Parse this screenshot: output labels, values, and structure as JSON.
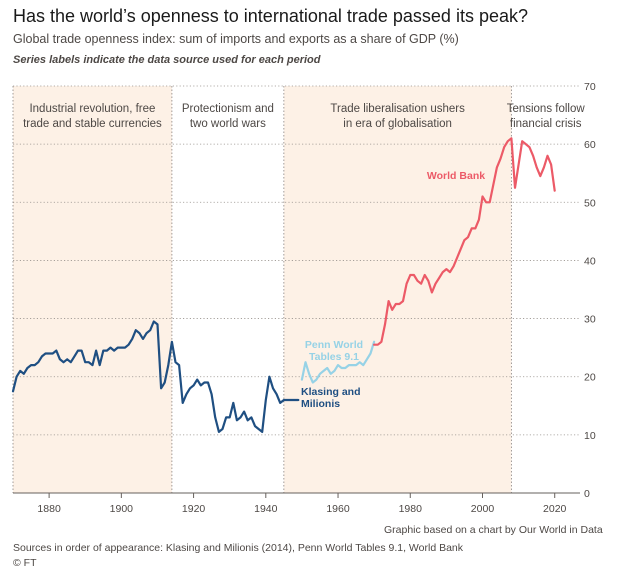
{
  "header": {
    "title": "Has the world’s openness to international trade passed its peak?",
    "subtitle": "Global trade openness index: sum of imports and exports as a share of GDP (%)",
    "note": "Series labels indicate the data source used for each period"
  },
  "footer": {
    "credit": "Graphic based on a chart by Our World in Data",
    "sources": "Sources in order of appearance: Klasing and Milionis (2014), Penn World Tables 9.1, World Bank",
    "copyright": "© FT"
  },
  "colors": {
    "band": "#fdf1e6",
    "grid": "#d9d4cf",
    "axis": "#66605c",
    "klasing": "#1f4f82",
    "penn": "#96d2e6",
    "worldbank": "#ec5a67"
  },
  "chart_data": {
    "type": "line",
    "xlim": [
      1870,
      2027
    ],
    "ylim": [
      0,
      70
    ],
    "x_ticks": [
      1880,
      1900,
      1920,
      1940,
      1960,
      1980,
      2000,
      2020
    ],
    "y_ticks": [
      0,
      10,
      20,
      30,
      40,
      50,
      60,
      70
    ],
    "grid": "horizontal dotted",
    "y_axis_position": "right",
    "periods": [
      {
        "start": 1870,
        "end": 1914,
        "label": [
          "Industrial revolution, free",
          "trade and stable currencies"
        ],
        "shaded": true
      },
      {
        "start": 1914,
        "end": 1945,
        "label": [
          "Protectionism and",
          "two world wars"
        ],
        "shaded": false
      },
      {
        "start": 1945,
        "end": 2008,
        "label": [
          "Trade liberalisation ushers",
          "in era of globalisation"
        ],
        "shaded": true
      },
      {
        "start": 2008,
        "end": 2027,
        "label": [
          "Tensions follow",
          "financial crisis"
        ],
        "shaded": false
      }
    ],
    "series": [
      {
        "name": "Klasing and Milionis",
        "label": [
          "Klasing and",
          "Milionis"
        ],
        "x": [
          1870,
          1871,
          1872,
          1873,
          1874,
          1875,
          1876,
          1877,
          1878,
          1879,
          1880,
          1881,
          1882,
          1883,
          1884,
          1885,
          1886,
          1887,
          1888,
          1889,
          1890,
          1891,
          1892,
          1893,
          1894,
          1895,
          1896,
          1897,
          1898,
          1899,
          1900,
          1901,
          1902,
          1903,
          1904,
          1905,
          1906,
          1907,
          1908,
          1909,
          1910,
          1911,
          1912,
          1913,
          1914,
          1915,
          1916,
          1917,
          1918,
          1919,
          1920,
          1921,
          1922,
          1923,
          1924,
          1925,
          1926,
          1927,
          1928,
          1929,
          1930,
          1931,
          1932,
          1933,
          1934,
          1935,
          1936,
          1937,
          1938,
          1939,
          1940,
          1941,
          1942,
          1943,
          1944,
          1945,
          1946,
          1947,
          1948,
          1949
        ],
        "y": [
          17.5,
          20,
          21,
          20.5,
          21.5,
          22,
          22,
          22.5,
          23.5,
          24,
          24,
          24,
          24.5,
          23,
          22.5,
          23,
          22.5,
          23.5,
          24.5,
          24.5,
          22.5,
          22.5,
          22,
          24.5,
          22,
          24.5,
          24.5,
          25,
          24.5,
          25,
          25,
          25,
          25.5,
          26.5,
          28,
          27.5,
          26.5,
          27.5,
          28,
          29.5,
          29,
          18,
          19,
          22,
          26,
          22.5,
          22,
          15.5,
          17,
          18,
          18.5,
          19.5,
          18.5,
          19,
          19,
          17,
          13,
          10.5,
          11,
          13,
          13,
          15.5,
          12.5,
          13,
          14,
          12.5,
          13,
          11.5,
          11,
          10.5,
          16,
          20,
          18,
          17,
          15.5,
          16,
          16,
          16,
          16,
          16
        ]
      },
      {
        "name": "Penn World Tables 9.1",
        "label": [
          "Penn World",
          "Tables 9.1"
        ],
        "x": [
          1950,
          1951,
          1952,
          1953,
          1954,
          1955,
          1956,
          1957,
          1958,
          1959,
          1960,
          1961,
          1962,
          1963,
          1964,
          1965,
          1966,
          1967,
          1968,
          1969,
          1970
        ],
        "y": [
          19.5,
          22.5,
          20.5,
          19,
          19.5,
          20.5,
          21,
          21.5,
          20.5,
          21,
          22,
          21.5,
          21.5,
          22,
          22,
          22,
          22.5,
          22,
          23,
          24,
          26
        ]
      },
      {
        "name": "World Bank",
        "label": [
          "World Bank"
        ],
        "x": [
          1970,
          1971,
          1972,
          1973,
          1974,
          1975,
          1976,
          1977,
          1978,
          1979,
          1980,
          1981,
          1982,
          1983,
          1984,
          1985,
          1986,
          1987,
          1988,
          1989,
          1990,
          1991,
          1992,
          1993,
          1994,
          1995,
          1996,
          1997,
          1998,
          1999,
          2000,
          2001,
          2002,
          2003,
          2004,
          2005,
          2006,
          2007,
          2008,
          2009,
          2010,
          2011,
          2012,
          2013,
          2014,
          2015,
          2016,
          2017,
          2018,
          2019,
          2020
        ],
        "y": [
          25.5,
          25.5,
          26,
          29,
          33,
          31.5,
          32.5,
          32.5,
          33,
          36,
          37.5,
          37.5,
          36.5,
          36,
          37.5,
          36.5,
          34.5,
          36,
          37,
          38,
          38.5,
          38,
          39,
          40.5,
          42,
          43.5,
          44,
          45.5,
          45.5,
          47,
          51,
          50,
          50,
          53,
          56,
          57.5,
          59.5,
          60.5,
          61,
          52.5,
          56.5,
          60.5,
          60,
          59.5,
          58,
          56,
          54.5,
          56,
          58,
          56.5,
          52
        ]
      }
    ]
  }
}
